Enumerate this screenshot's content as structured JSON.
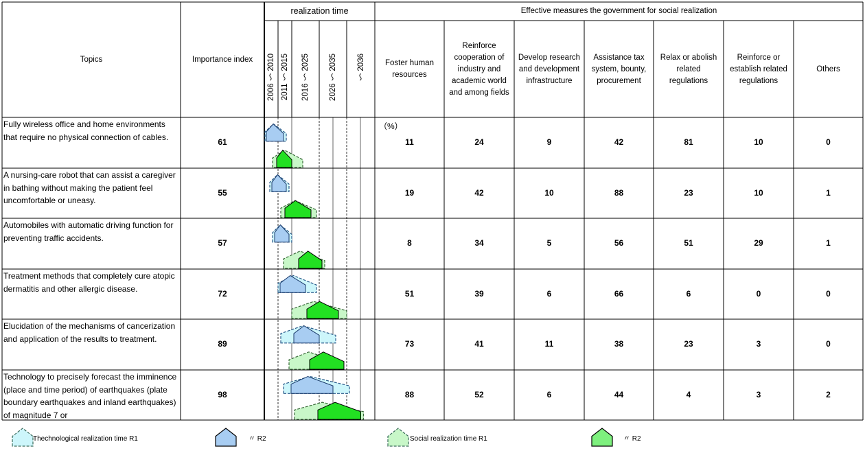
{
  "header": {
    "topics": "Topics",
    "importance": "Importance index",
    "realization_time": "realization time",
    "periods": [
      "2006 ～ 2010",
      "2011 ～ 2015",
      "2016 ～ 2025",
      "2026 ～ 2035",
      "～ 2036"
    ],
    "measures_title": "Effective measures the government for social realization",
    "measures": [
      "Foster human resources",
      "Reinforce cooperation of industry and academic world and among fields",
      "Develop research and development infrastructure",
      "Assistance tax system, bounty, procurement",
      "Relax or abolish related regulations",
      "Reinforce or establish related regulations",
      "Others"
    ]
  },
  "unit": "（%）",
  "rows": [
    {
      "topic": "Fully wireless office and home environments that require no physical connection of cables.",
      "importance": "61",
      "values": [
        "11",
        "24",
        "9",
        "42",
        "81",
        "10",
        "0"
      ],
      "tech_r1": [
        2006,
        2013
      ],
      "tech_r2": [
        2006,
        2013
      ],
      "soc_r1": [
        2009,
        2019
      ],
      "soc_r2": [
        2009,
        2016
      ]
    },
    {
      "topic": "A nursing-care robot that can assist a caregiver in bathing without making the patient feel uncomfortable or uneasy.",
      "importance": "55",
      "values": [
        "19",
        "42",
        "10",
        "88",
        "23",
        "10",
        "1"
      ],
      "tech_r1": [
        2008,
        2014
      ],
      "tech_r2": [
        2008,
        2014
      ],
      "soc_r1": [
        2012,
        2024
      ],
      "soc_r2": [
        2012,
        2023
      ]
    },
    {
      "topic": "Automobiles with automatic driving function for preventing traffic accidents.",
      "importance": "57",
      "values": [
        "8",
        "34",
        "5",
        "56",
        "51",
        "29",
        "1"
      ],
      "tech_r1": [
        2009,
        2015
      ],
      "tech_r2": [
        2009,
        2015
      ],
      "soc_r1": [
        2013,
        2027
      ],
      "soc_r2": [
        2017,
        2027
      ]
    },
    {
      "topic": "Treatment methods that completely cure atopic dermatitis and other allergic disease.",
      "importance": "72",
      "values": [
        "51",
        "39",
        "6",
        "66",
        "6",
        "0",
        "0"
      ],
      "tech_r1": [
        2011,
        2024
      ],
      "tech_r2": [
        2011,
        2021
      ],
      "soc_r1": [
        2016,
        2035
      ],
      "soc_r2": [
        2020,
        2033
      ]
    },
    {
      "topic": "Elucidation of the mechanisms of cancerization and application of the results to treatment.",
      "importance": "89",
      "values": [
        "73",
        "41",
        "11",
        "38",
        "23",
        "3",
        "0"
      ],
      "tech_r1": [
        2012,
        2031
      ],
      "tech_r2": [
        2016,
        2026
      ],
      "soc_r1": [
        2015,
        2032
      ],
      "soc_r2": [
        2021,
        2035
      ]
    },
    {
      "topic": "Technology to precisely forecast the imminence (place and time period) of earthquakes (plate boundary earthquakes and inland earthquakes) of magnitude 7 or",
      "importance": "98",
      "values": [
        "88",
        "52",
        "6",
        "44",
        "4",
        "3",
        "2"
      ],
      "tech_r1": [
        2013,
        2036
      ],
      "tech_r2": [
        2015,
        2031
      ],
      "soc_r1": [
        2017,
        2041
      ],
      "soc_r2": [
        2024,
        2041
      ]
    }
  ],
  "legend": [
    {
      "label": "Thechnological realization time  R1",
      "color": "#cdf6fb",
      "dashed": true
    },
    {
      "label": "〃  R2",
      "color": "#a8cdf2",
      "dashed": false
    },
    {
      "label": "Social realization time  R1",
      "color": "#c8f7c8",
      "dashed": true
    },
    {
      "label": "〃  R2",
      "color": "#7ef07e",
      "dashed": false
    }
  ]
}
